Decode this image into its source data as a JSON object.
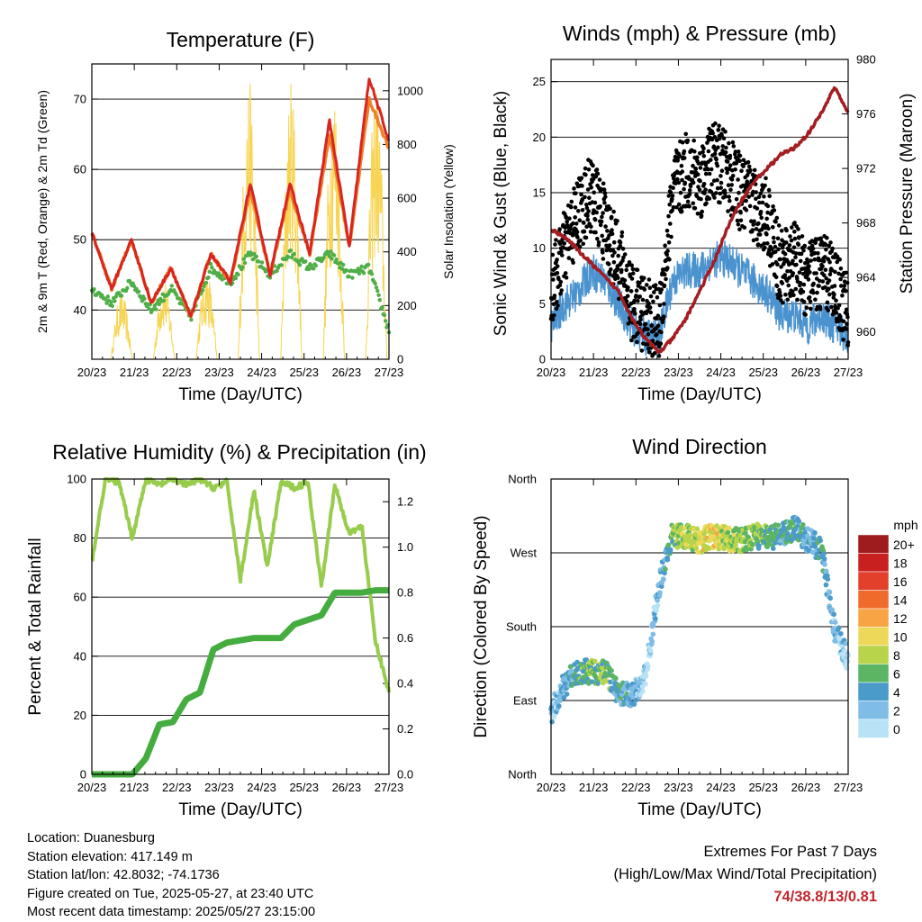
{
  "x_ticks": [
    "20/23",
    "21/23",
    "22/23",
    "23/23",
    "24/23",
    "25/23",
    "26/23",
    "27/23"
  ],
  "panels": {
    "temperature": {
      "title": "Temperature (F)",
      "xlabel": "Time (Day/UTC)",
      "ylabel_left": "2m & 9m T (Red, Orange) & 2m Td (Green)",
      "ylabel_right": "Solar Insolation (Yellow)",
      "left_ticks": [
        "40",
        "50",
        "60",
        "70"
      ],
      "right_ticks": [
        "0",
        "200",
        "400",
        "600",
        "800",
        "1000"
      ]
    },
    "winds": {
      "title": "Winds (mph) & Pressure (mb)",
      "xlabel": "Time (Day/UTC)",
      "ylabel_left": "Sonic Wind & Gust (Blue, Black)",
      "ylabel_right": "Station Pressure (Maroon)",
      "left_ticks": [
        "0",
        "5",
        "10",
        "15",
        "20",
        "25"
      ],
      "right_ticks": [
        "960",
        "964",
        "968",
        "972",
        "976",
        "980"
      ]
    },
    "humidity": {
      "title": "Relative Humidity (%) & Precipitation (in)",
      "xlabel": "Time (Day/UTC)",
      "ylabel_left": "Percent & Total Rainfall",
      "left_ticks": [
        "0",
        "20",
        "40",
        "60",
        "80",
        "100"
      ],
      "right_ticks": [
        "0.0",
        "0.2",
        "0.4",
        "0.6",
        "0.8",
        "1.0",
        "1.2"
      ]
    },
    "direction": {
      "title": "Wind Direction",
      "xlabel": "Time (Day/UTC)",
      "ylabel_left": "Direction (Colored By Speed)",
      "dir_ticks": [
        "North",
        "East",
        "South",
        "West",
        "North"
      ]
    }
  },
  "colorbar": {
    "title": "mph",
    "labels": [
      "20+",
      "18",
      "16",
      "14",
      "12",
      "10",
      "8",
      "6",
      "4",
      "2",
      "0"
    ],
    "colors": [
      "#9e1b1e",
      "#c8201f",
      "#e2402b",
      "#f06a2c",
      "#f8a445",
      "#eed85a",
      "#b8d44a",
      "#5bb562",
      "#4a9aca",
      "#7fbde6",
      "#b8e2f6"
    ]
  },
  "info": {
    "location": "Location: Duanesburg",
    "elevation": "Station elevation: 417.149 m",
    "latlon": "Station lat/lon: 42.8032; -74.1736",
    "created": "Figure created on Tue, 2025-05-27, at 23:40 UTC",
    "recent": "Most recent data timestamp: 2025/05/27 23:15:00"
  },
  "extremes": {
    "line1": "Extremes For Past 7 Days",
    "line2": "(High/Low/Max Wind/Total Precipitation)",
    "values": "74/38.8/13/0.81"
  },
  "colors": {
    "temp_2m": "#d7261f",
    "temp_9m": "#f07f2a",
    "dewpoint": "#4fae48",
    "solar": "#f7d451",
    "gust": "#000000",
    "wind": "#4b93cf",
    "pressure": "#a31d22",
    "rh": "#98cc4d",
    "precip": "#45ad3f"
  },
  "chart_data": [
    {
      "type": "line",
      "title": "Temperature (F)",
      "xlabel": "Time (Day/UTC)",
      "ylabel": "2m & 9m T (Red, Orange) & 2m Td (Green)",
      "ylabel_right": "Solar Insolation (Yellow)",
      "x": [
        "20/23",
        "21/00",
        "21/12",
        "21/23",
        "22/12",
        "22/23",
        "23/12",
        "23/23",
        "24/12",
        "24/23",
        "25/12",
        "25/23",
        "26/12",
        "26/23",
        "27/12",
        "27/23"
      ],
      "ylim": [
        33,
        75
      ],
      "ylim_right": [
        0,
        1100
      ],
      "series": [
        {
          "name": "2m T",
          "axis": "left",
          "values": [
            51,
            43,
            50,
            41,
            46,
            39,
            48,
            44,
            58,
            45,
            58,
            48,
            67,
            49,
            73,
            64
          ]
        },
        {
          "name": "9m T",
          "axis": "left",
          "values": [
            51,
            43,
            50,
            41,
            46,
            39,
            48,
            44,
            57,
            45,
            57,
            48,
            65,
            49,
            70,
            63
          ]
        },
        {
          "name": "2m Td",
          "axis": "left",
          "values": [
            43,
            41,
            44,
            40,
            43,
            39,
            46,
            44,
            48,
            45,
            48,
            46,
            48,
            45,
            46,
            37
          ]
        },
        {
          "name": "Solar Insolation",
          "axis": "right",
          "values": [
            0,
            0,
            250,
            0,
            310,
            0,
            340,
            0,
            1050,
            0,
            1050,
            0,
            1050,
            0,
            1050,
            0
          ]
        }
      ]
    },
    {
      "type": "scatter",
      "title": "Winds (mph) & Pressure (mb)",
      "xlabel": "Time (Day/UTC)",
      "ylabel": "Sonic Wind & Gust (Blue, Black)",
      "ylabel_right": "Station Pressure (Maroon)",
      "x": [
        "20/23",
        "21/06",
        "21/12",
        "21/18",
        "21/23",
        "22/06",
        "22/12",
        "22/23",
        "23/06",
        "23/12",
        "23/23",
        "24/06",
        "24/12",
        "24/23",
        "25/06",
        "25/12",
        "25/23",
        "26/06",
        "26/12",
        "26/23",
        "27/06",
        "27/12",
        "27/23"
      ],
      "ylim": [
        0,
        27
      ],
      "ylim_right": [
        958,
        980
      ],
      "series": [
        {
          "name": "Gust",
          "axis": "left",
          "values": [
            6,
            10,
            13,
            15,
            12,
            9,
            5,
            4,
            3,
            15,
            17,
            16,
            18,
            17,
            15,
            14,
            13,
            8,
            9,
            7,
            8,
            7,
            4
          ]
        },
        {
          "name": "Wind",
          "axis": "left",
          "values": [
            3,
            5,
            6,
            8,
            7,
            5,
            3,
            2,
            2,
            7,
            8,
            8,
            9,
            9,
            8,
            7,
            6,
            4,
            4,
            3,
            4,
            3,
            2
          ]
        },
        {
          "name": "Station Pressure",
          "axis": "right",
          "values": [
            967.5,
            967,
            966,
            965,
            964,
            963,
            961,
            959.5,
            958.5,
            959.5,
            961,
            963,
            965,
            967.5,
            969.5,
            971,
            972,
            973,
            973.5,
            974.5,
            976,
            978,
            976
          ]
        }
      ]
    },
    {
      "type": "line",
      "title": "Relative Humidity (%) & Precipitation (in)",
      "xlabel": "Time (Day/UTC)",
      "ylabel": "Percent & Total Rainfall",
      "x": [
        "20/23",
        "21/06",
        "21/12",
        "21/18",
        "21/23",
        "22/06",
        "22/12",
        "22/23",
        "23/06",
        "23/12",
        "23/23",
        "24/06",
        "24/12",
        "24/23",
        "25/06",
        "25/12",
        "25/23",
        "26/06",
        "26/12",
        "26/23",
        "27/06",
        "27/12",
        "27/23"
      ],
      "ylim": [
        0,
        100
      ],
      "ylim_right": [
        0,
        1.3
      ],
      "series": [
        {
          "name": "Relative Humidity",
          "axis": "left",
          "values": [
            72,
            100,
            99,
            80,
            100,
            98,
            100,
            98,
            100,
            97,
            99,
            66,
            96,
            70,
            99,
            97,
            99,
            64,
            98,
            82,
            84,
            45,
            28
          ]
        },
        {
          "name": "Total Rainfall",
          "axis": "right",
          "values": [
            0,
            0,
            0,
            0,
            0.07,
            0.22,
            0.23,
            0.33,
            0.36,
            0.55,
            0.58,
            0.59,
            0.6,
            0.6,
            0.6,
            0.66,
            0.68,
            0.7,
            0.8,
            0.8,
            0.8,
            0.81,
            0.81
          ]
        }
      ]
    },
    {
      "type": "scatter",
      "title": "Wind Direction",
      "xlabel": "Time (Day/UTC)",
      "ylabel": "Direction (Colored By Speed)",
      "y_ticks": [
        "North",
        "East",
        "South",
        "West",
        "North"
      ],
      "ylim": [
        0,
        360
      ],
      "x": [
        "20/23",
        "21/06",
        "21/12",
        "21/18",
        "21/23",
        "22/06",
        "22/12",
        "22/23",
        "23/06",
        "23/12",
        "23/23",
        "24/06",
        "24/12",
        "24/23",
        "25/06",
        "25/12",
        "25/23",
        "26/06",
        "26/12",
        "26/23",
        "27/06",
        "27/12",
        "27/23"
      ],
      "series": [
        {
          "name": "Direction",
          "values": [
            75,
            110,
            125,
            125,
            125,
            100,
            95,
            120,
            230,
            292,
            290,
            285,
            290,
            288,
            285,
            290,
            290,
            290,
            300,
            285,
            275,
            175,
            140
          ]
        },
        {
          "name": "Speed (mph)",
          "values": [
            2,
            3,
            5,
            6,
            6,
            4,
            3,
            1,
            2,
            6,
            8,
            9,
            10,
            8,
            7,
            7,
            6,
            4,
            5,
            3,
            4,
            2,
            1
          ]
        }
      ],
      "colorbar_title": "mph"
    }
  ]
}
